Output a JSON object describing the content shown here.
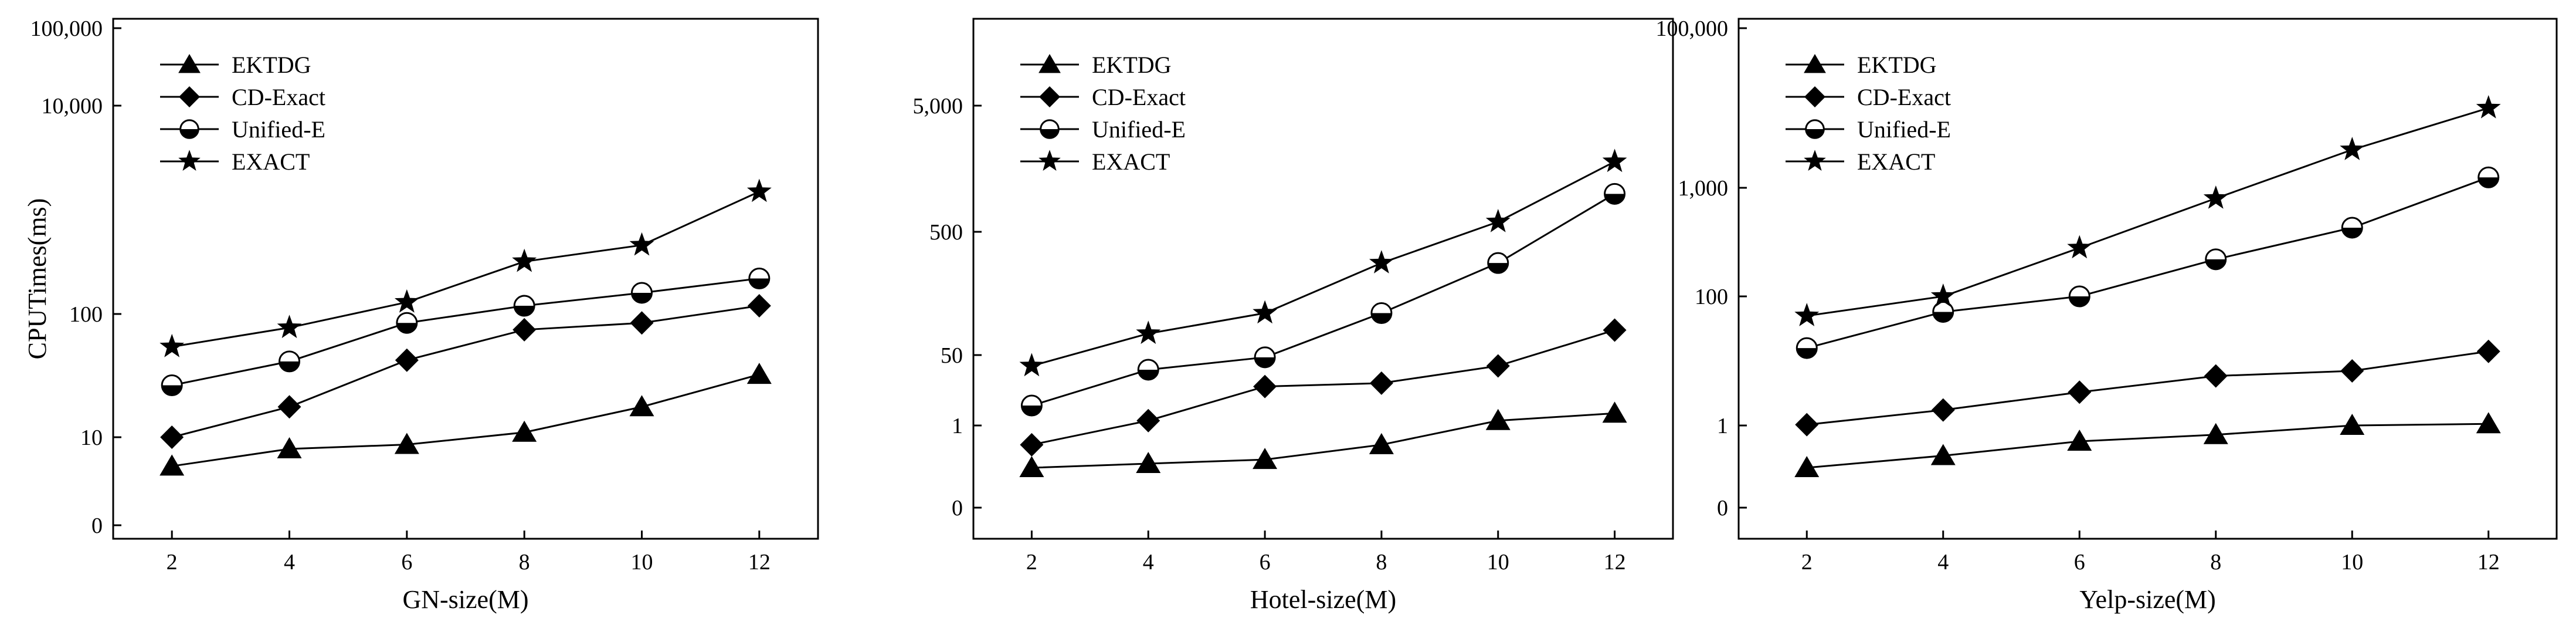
{
  "marker_color": "#000000",
  "background_color": "#ffffff",
  "chart_data": [
    {
      "type": "line",
      "xlabel": "GN-size(M)",
      "ylabel": "CPUTimes(ms)",
      "x": [
        2,
        4,
        6,
        8,
        10,
        12
      ],
      "xlim": [
        1,
        13
      ],
      "x_ticks": [
        "2",
        "4",
        "6",
        "8",
        "10",
        "12"
      ],
      "y_scale": "piecewise-log",
      "y_ticks": [
        {
          "value": 0,
          "label": "0"
        },
        {
          "value": 10,
          "label": "10"
        },
        {
          "value": 100,
          "label": "100"
        },
        {
          "value": 10000,
          "label": "10,000"
        },
        {
          "value": 100000,
          "label": "100,000"
        }
      ],
      "legend_position": "top-left",
      "series": [
        {
          "name": "EKTDG",
          "marker": "triangle-icon",
          "values": [
            4,
            7,
            8,
            11,
            18,
            33
          ]
        },
        {
          "name": "CD-Exact",
          "marker": "diamond-icon",
          "values": [
            10,
            18,
            43,
            75,
            85,
            120
          ]
        },
        {
          "name": "Unified-E",
          "marker": "half-filled-circle-icon",
          "values": [
            27,
            42,
            85,
            120,
            160,
            220
          ]
        },
        {
          "name": "EXACT",
          "marker": "star-icon",
          "values": [
            55,
            78,
            130,
            320,
            460,
            1500
          ]
        }
      ]
    },
    {
      "type": "line",
      "xlabel": "Hotel-size(M)",
      "ylabel": "",
      "x": [
        2,
        4,
        6,
        8,
        10,
        12
      ],
      "xlim": [
        1,
        13
      ],
      "x_ticks": [
        "2",
        "4",
        "6",
        "8",
        "10",
        "12"
      ],
      "y_scale": "piecewise-log",
      "y_ticks": [
        {
          "value": 0,
          "label": "0"
        },
        {
          "value": 1,
          "label": "1"
        },
        {
          "value": 50,
          "label": "50"
        },
        {
          "value": 500,
          "label": "500"
        },
        {
          "value": 5000,
          "label": "5,000"
        }
      ],
      "legend_position": "top-left",
      "series": [
        {
          "name": "EKTDG",
          "marker": "triangle-icon",
          "values": [
            0.4,
            0.45,
            0.5,
            0.7,
            1.5,
            2.5
          ]
        },
        {
          "name": "CD-Exact",
          "marker": "diamond-icon",
          "values": [
            0.7,
            1.5,
            11,
            13,
            30,
            80
          ]
        },
        {
          "name": "Unified-E",
          "marker": "half-filled-circle-icon",
          "values": [
            4,
            25,
            45,
            110,
            280,
            1000
          ]
        },
        {
          "name": "EXACT",
          "marker": "star-icon",
          "values": [
            30,
            75,
            110,
            280,
            600,
            1800
          ]
        }
      ]
    },
    {
      "type": "line",
      "xlabel": "Yelp-size(M)",
      "ylabel": "",
      "x": [
        2,
        4,
        6,
        8,
        10,
        12
      ],
      "xlim": [
        1,
        13
      ],
      "x_ticks": [
        "2",
        "4",
        "6",
        "8",
        "10",
        "12"
      ],
      "y_scale": "piecewise-log",
      "y_ticks": [
        {
          "value": 0,
          "label": "0"
        },
        {
          "value": 1,
          "label": "1"
        },
        {
          "value": 100,
          "label": "100"
        },
        {
          "value": 1000,
          "label": "1,000"
        },
        {
          "value": 100000,
          "label": "100,000"
        }
      ],
      "legend_position": "top-left",
      "series": [
        {
          "name": "EKTDG",
          "marker": "triangle-icon",
          "values": [
            0.4,
            0.55,
            0.75,
            0.85,
            1.0,
            1.1
          ]
        },
        {
          "name": "CD-Exact",
          "marker": "diamond-icon",
          "values": [
            1.05,
            2.2,
            4.5,
            8,
            9.5,
            18
          ]
        },
        {
          "name": "Unified-E",
          "marker": "half-filled-circle-icon",
          "values": [
            20,
            62,
            100,
            220,
            430,
            1350
          ]
        },
        {
          "name": "EXACT",
          "marker": "star-icon",
          "values": [
            55,
            100,
            280,
            800,
            3000,
            10000
          ]
        }
      ]
    }
  ]
}
